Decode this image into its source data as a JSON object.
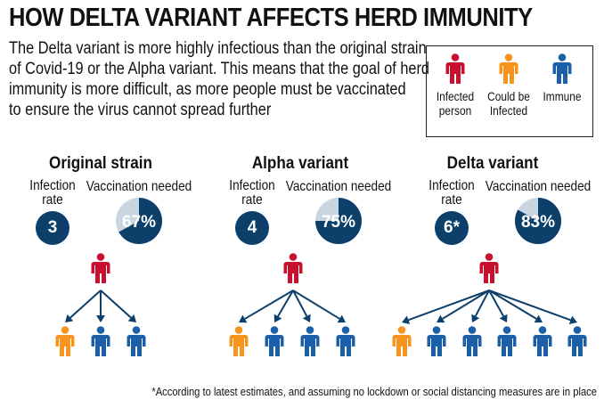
{
  "title": "HOW DELTA VARIANT AFFECTS HERD IMMUNITY",
  "intro_lines": [
    "The Delta variant is more highly infectious than the original strain",
    "of Covid-19 or the Alpha variant. This means that the goal of herd",
    "immunity is more difficult, as more people must be vaccinated",
    "to ensure the virus cannot spread further"
  ],
  "legend": {
    "infected": {
      "line1": "Infected",
      "line2": "person",
      "icon": "person-icon",
      "color": "#c8102e"
    },
    "could_be": {
      "line1": "Could be",
      "line2": "Infected",
      "icon": "person-icon",
      "color": "#f7941d"
    },
    "immune": {
      "line1": "Immune",
      "line2": "",
      "icon": "person-icon",
      "color": "#1a5fa8"
    }
  },
  "common": {
    "infection_rate_line1": "Infection",
    "infection_rate_line2": "rate",
    "vaccination_needed": "Vaccination needed"
  },
  "sections": [
    {
      "title": "Original strain",
      "rate": "3",
      "vaccination_pct": 67,
      "vaccination_label": "67%",
      "children": [
        "could_be",
        "immune",
        "immune"
      ]
    },
    {
      "title": "Alpha variant",
      "rate": "4",
      "vaccination_pct": 75,
      "vaccination_label": "75%",
      "children": [
        "could_be",
        "immune",
        "immune",
        "immune"
      ]
    },
    {
      "title": "Delta variant",
      "rate": "6*",
      "vaccination_pct": 83,
      "vaccination_label": "83%",
      "children": [
        "could_be",
        "immune",
        "immune",
        "immune",
        "immune",
        "immune"
      ]
    }
  ],
  "colors": {
    "infected": "#c8102e",
    "could_be": "#f7941d",
    "immune": "#1a5fa8",
    "dark_blue": "#0d3f6b",
    "pie_light": "#c9d6e2",
    "arrow": "#0d3f6b"
  },
  "footnote": "*According to latest estimates, and assuming no lockdown or social distancing measures are in place"
}
